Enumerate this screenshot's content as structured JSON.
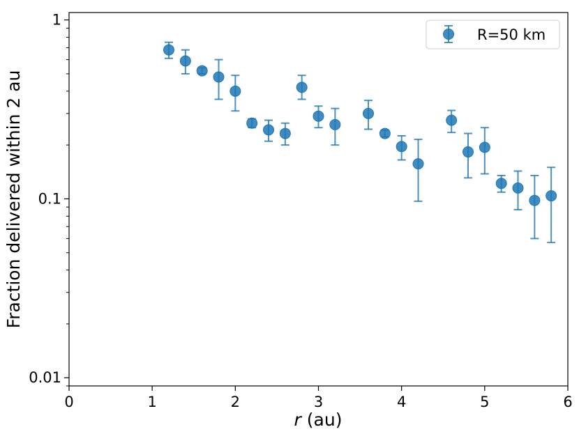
{
  "chart_data": {
    "type": "scatter",
    "xlabel_symbol": "r",
    "xlabel_unit": " (au)",
    "ylabel": "Fraction delivered within 2 au",
    "xlim": [
      0,
      6
    ],
    "ylim": [
      0.009,
      1.1
    ],
    "yscale": "log",
    "x_ticks": [
      0,
      1,
      2,
      3,
      4,
      5,
      6
    ],
    "x_tick_labels": [
      "0",
      "1",
      "2",
      "3",
      "4",
      "5",
      "6"
    ],
    "y_ticks": [
      1,
      0.1,
      0.01
    ],
    "y_tick_labels": [
      "1",
      "0.1",
      "0.01"
    ],
    "legend_position": "top-right",
    "colors": {
      "series": "#1f77b4"
    },
    "series": [
      {
        "name": "R=50 km",
        "points": [
          {
            "x": 1.2,
            "y": 0.68,
            "lo": 0.61,
            "hi": 0.75
          },
          {
            "x": 1.4,
            "y": 0.59,
            "lo": 0.5,
            "hi": 0.68
          },
          {
            "x": 1.6,
            "y": 0.52,
            "lo": 0.5,
            "hi": 0.54
          },
          {
            "x": 1.8,
            "y": 0.48,
            "lo": 0.36,
            "hi": 0.6
          },
          {
            "x": 2.0,
            "y": 0.4,
            "lo": 0.31,
            "hi": 0.49
          },
          {
            "x": 2.2,
            "y": 0.265,
            "lo": 0.25,
            "hi": 0.28
          },
          {
            "x": 2.4,
            "y": 0.243,
            "lo": 0.21,
            "hi": 0.275
          },
          {
            "x": 2.6,
            "y": 0.232,
            "lo": 0.2,
            "hi": 0.265
          },
          {
            "x": 2.8,
            "y": 0.42,
            "lo": 0.36,
            "hi": 0.49
          },
          {
            "x": 3.0,
            "y": 0.29,
            "lo": 0.25,
            "hi": 0.33
          },
          {
            "x": 3.2,
            "y": 0.26,
            "lo": 0.2,
            "hi": 0.32
          },
          {
            "x": 3.6,
            "y": 0.3,
            "lo": 0.245,
            "hi": 0.355
          },
          {
            "x": 3.8,
            "y": 0.232,
            "lo": 0.222,
            "hi": 0.242
          },
          {
            "x": 4.0,
            "y": 0.196,
            "lo": 0.165,
            "hi": 0.225
          },
          {
            "x": 4.2,
            "y": 0.157,
            "lo": 0.097,
            "hi": 0.215
          },
          {
            "x": 4.6,
            "y": 0.275,
            "lo": 0.235,
            "hi": 0.312
          },
          {
            "x": 4.8,
            "y": 0.183,
            "lo": 0.131,
            "hi": 0.232
          },
          {
            "x": 5.0,
            "y": 0.194,
            "lo": 0.138,
            "hi": 0.25
          },
          {
            "x": 5.2,
            "y": 0.122,
            "lo": 0.109,
            "hi": 0.135
          },
          {
            "x": 5.4,
            "y": 0.115,
            "lo": 0.087,
            "hi": 0.143
          },
          {
            "x": 5.6,
            "y": 0.098,
            "lo": 0.06,
            "hi": 0.135
          },
          {
            "x": 5.8,
            "y": 0.104,
            "lo": 0.057,
            "hi": 0.15
          }
        ]
      }
    ]
  }
}
